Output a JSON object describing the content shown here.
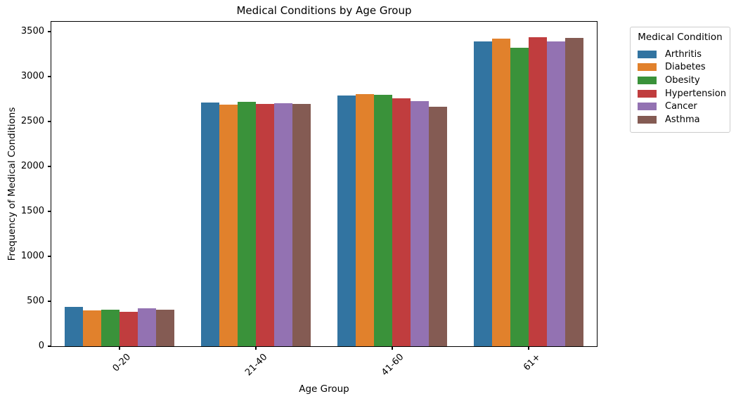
{
  "chart_data": {
    "type": "bar",
    "title": "Medical Conditions by Age Group",
    "xlabel": "Age Group",
    "ylabel": "Frequency of Medical Conditions",
    "categories": [
      "0-20",
      "21-40",
      "41-60",
      "61+"
    ],
    "series": [
      {
        "name": "Arthritis",
        "color": "#3274a1",
        "values": [
          437,
          2711,
          2789,
          3390
        ]
      },
      {
        "name": "Diabetes",
        "color": "#e1812c",
        "values": [
          399,
          2687,
          2806,
          3424
        ]
      },
      {
        "name": "Obesity",
        "color": "#3a923a",
        "values": [
          403,
          2719,
          2801,
          3318
        ]
      },
      {
        "name": "Hypertension",
        "color": "#c03d3e",
        "values": [
          383,
          2692,
          2757,
          3436
        ]
      },
      {
        "name": "Cancer",
        "color": "#9372b2",
        "values": [
          421,
          2701,
          2731,
          3391
        ]
      },
      {
        "name": "Asthma",
        "color": "#845b53",
        "values": [
          408,
          2698,
          2663,
          3434
        ]
      }
    ],
    "legend_title": "Medical Condition",
    "legend_position": "upper right outside axes",
    "ylim": [
      0,
      3610
    ],
    "yticks": [
      0,
      500,
      1000,
      1500,
      2000,
      2500,
      3000,
      3500
    ],
    "bar_group_width_fraction": 0.8,
    "grid": false,
    "background_color": "#ffffff",
    "spine_color": "#000000"
  }
}
